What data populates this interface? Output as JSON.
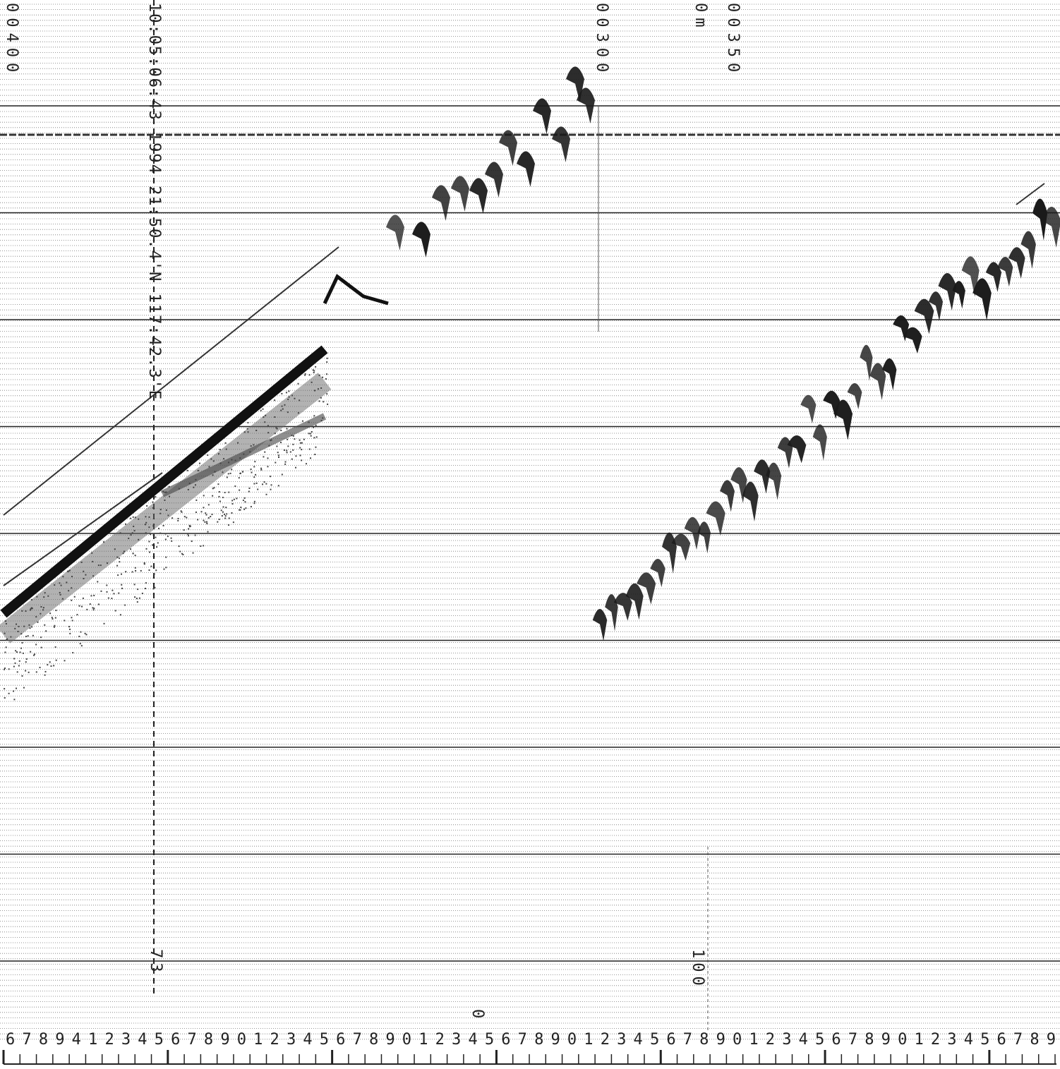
{
  "labels": {
    "depth_left": "00400",
    "timestamp": "10:05:06:43 1994 21:50.4'N 117:42.3'E",
    "depth_mid": "00300",
    "unit": "0m",
    "depth_right": "00350",
    "mark_73": "73",
    "mark_100": "100",
    "mark_0": "0"
  },
  "scale_digits": "6789412345678901234567890123456789012345678901234567890123456789"
}
